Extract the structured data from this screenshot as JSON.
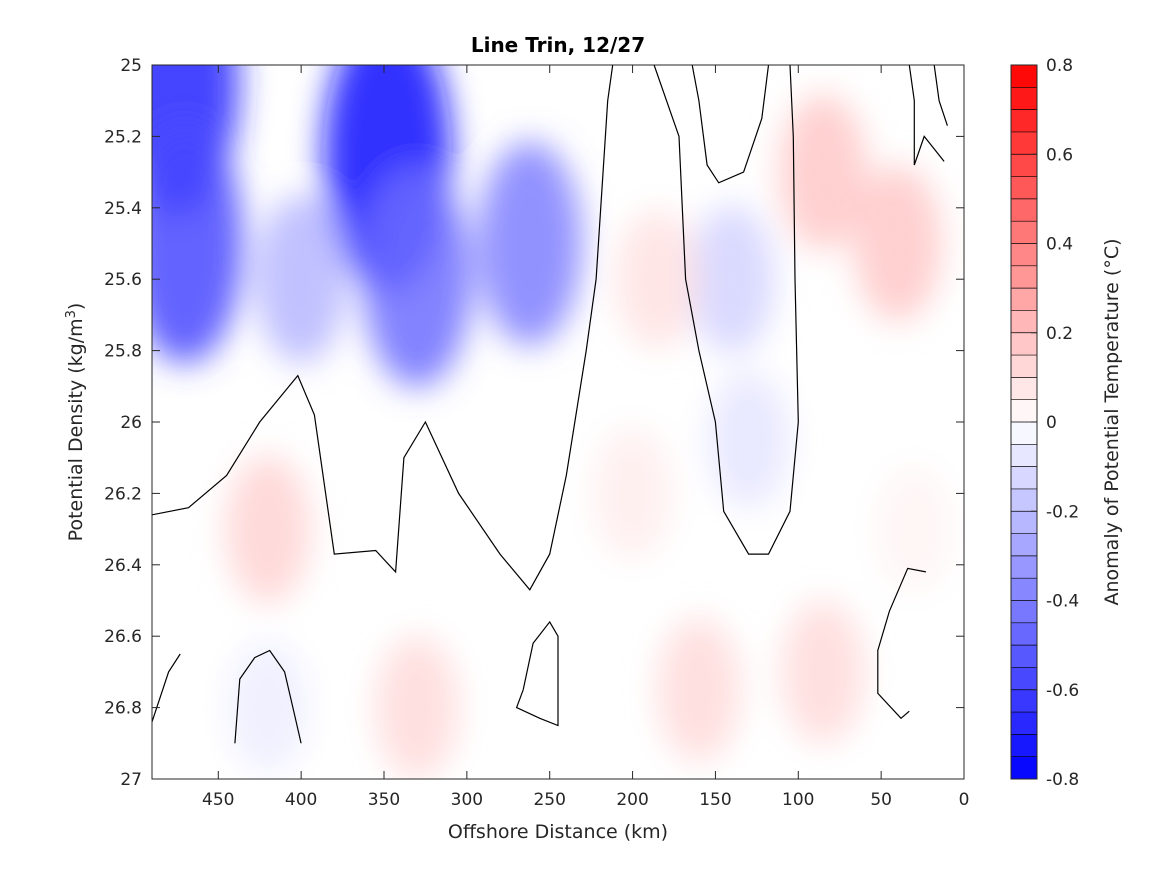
{
  "chart_data": {
    "type": "heatmap",
    "subtype": "filled-contour",
    "title": "Line Trin, 12/27",
    "xlabel": "Offshore Distance (km)",
    "ylabel": "Potential Density (kg/m",
    "ylabel_sup": "3",
    "ylabel_end": ")",
    "colorbar_label": "Anomaly of Potential Temperature (°C)",
    "x_reversed": true,
    "xlim": [
      0,
      490
    ],
    "ylim": [
      25,
      27
    ],
    "y_reversed": true,
    "xticks": [
      450,
      400,
      350,
      300,
      250,
      200,
      150,
      100,
      50,
      0
    ],
    "xtick_labels": [
      "450",
      "400",
      "350",
      "300",
      "250",
      "200",
      "150",
      "100",
      "50",
      "0"
    ],
    "yticks": [
      25,
      25.2,
      25.4,
      25.6,
      25.8,
      26,
      26.2,
      26.4,
      26.6,
      26.8,
      27
    ],
    "ytick_labels": [
      "25",
      "25.2",
      "25.4",
      "25.6",
      "25.8",
      "26",
      "26.2",
      "26.4",
      "26.6",
      "26.8",
      "27"
    ],
    "colorbar": {
      "range": [
        -0.8,
        0.8
      ],
      "levels": 32,
      "ticks": [
        0.8,
        0.6,
        0.4,
        0.2,
        0,
        -0.2,
        -0.4,
        -0.6,
        -0.8
      ],
      "tick_labels": [
        "0.8",
        "0.6",
        "0.4",
        "0.2",
        "0",
        "-0.2",
        "-0.4",
        "-0.6",
        "-0.8"
      ],
      "colormap": "blue-white-red",
      "low_color": "#0000ff",
      "mid_color": "#ffffff",
      "high_color": "#ff0000"
    },
    "zero_contour_color": "#000000",
    "grid": false,
    "anomaly_features": [
      {
        "x": 475,
        "y": 25.05,
        "value": -0.6
      },
      {
        "x": 470,
        "y": 25.5,
        "value": -0.5
      },
      {
        "x": 348,
        "y": 25.25,
        "value": -0.65
      },
      {
        "x": 330,
        "y": 25.6,
        "value": -0.4
      },
      {
        "x": 262,
        "y": 25.5,
        "value": -0.35
      },
      {
        "x": 400,
        "y": 25.6,
        "value": -0.2
      },
      {
        "x": 140,
        "y": 25.6,
        "value": -0.12
      },
      {
        "x": 130,
        "y": 26.05,
        "value": -0.07
      },
      {
        "x": 420,
        "y": 26.8,
        "value": -0.05
      },
      {
        "x": 85,
        "y": 25.3,
        "value": 0.15
      },
      {
        "x": 40,
        "y": 25.5,
        "value": 0.15
      },
      {
        "x": 185,
        "y": 25.6,
        "value": 0.08
      },
      {
        "x": 420,
        "y": 26.3,
        "value": 0.12
      },
      {
        "x": 330,
        "y": 26.8,
        "value": 0.1
      },
      {
        "x": 160,
        "y": 26.75,
        "value": 0.1
      },
      {
        "x": 85,
        "y": 26.7,
        "value": 0.1
      },
      {
        "x": 200,
        "y": 26.2,
        "value": 0.05
      },
      {
        "x": 30,
        "y": 26.3,
        "value": 0.03
      }
    ],
    "zero_contours": [
      [
        [
          490,
          26.26
        ],
        [
          468,
          26.24
        ],
        [
          445,
          26.15
        ],
        [
          425,
          26.0
        ],
        [
          402,
          25.87
        ],
        [
          392,
          25.98
        ],
        [
          380,
          26.37
        ],
        [
          355,
          26.36
        ],
        [
          343,
          26.42
        ],
        [
          338,
          26.1
        ],
        [
          325,
          26.0
        ],
        [
          305,
          26.2
        ],
        [
          280,
          26.37
        ],
        [
          262,
          26.47
        ],
        [
          250,
          26.37
        ],
        [
          240,
          26.15
        ],
        [
          228,
          25.8
        ],
        [
          222,
          25.6
        ],
        [
          215,
          25.1
        ],
        [
          212,
          25.0
        ]
      ],
      [
        [
          187,
          25.0
        ],
        [
          172,
          25.2
        ],
        [
          168,
          25.6
        ],
        [
          160,
          25.8
        ],
        [
          150,
          26.0
        ],
        [
          145,
          26.25
        ],
        [
          130,
          26.37
        ],
        [
          118,
          26.37
        ],
        [
          105,
          26.25
        ],
        [
          100,
          26.0
        ],
        [
          102,
          25.6
        ],
        [
          103,
          25.2
        ],
        [
          105,
          25.0
        ]
      ],
      [
        [
          164,
          25.0
        ],
        [
          160,
          25.1
        ],
        [
          155,
          25.28
        ],
        [
          148,
          25.33
        ],
        [
          133,
          25.3
        ],
        [
          122,
          25.15
        ],
        [
          118,
          25.0
        ]
      ],
      [
        [
          33,
          25.0
        ],
        [
          30,
          25.1
        ],
        [
          30,
          25.28
        ],
        [
          24,
          25.2
        ],
        [
          12,
          25.27
        ]
      ],
      [
        [
          18,
          25.0
        ],
        [
          15,
          25.1
        ],
        [
          10,
          25.17
        ]
      ],
      [
        [
          23,
          26.42
        ],
        [
          34,
          26.41
        ],
        [
          45,
          26.53
        ],
        [
          52,
          26.64
        ],
        [
          52,
          26.76
        ],
        [
          38,
          26.83
        ],
        [
          33,
          26.81
        ]
      ],
      [
        [
          490,
          26.84
        ],
        [
          480,
          26.7
        ],
        [
          473,
          26.65
        ]
      ],
      [
        [
          440,
          26.9
        ],
        [
          437,
          26.72
        ],
        [
          428,
          26.66
        ],
        [
          419,
          26.64
        ],
        [
          410,
          26.7
        ],
        [
          405,
          26.8
        ],
        [
          400,
          26.9
        ]
      ],
      [
        [
          266,
          26.75
        ],
        [
          260,
          26.62
        ],
        [
          250,
          26.56
        ],
        [
          245,
          26.6
        ],
        [
          245,
          26.85
        ],
        [
          256,
          26.83
        ],
        [
          270,
          26.8
        ],
        [
          266,
          26.75
        ]
      ]
    ]
  }
}
